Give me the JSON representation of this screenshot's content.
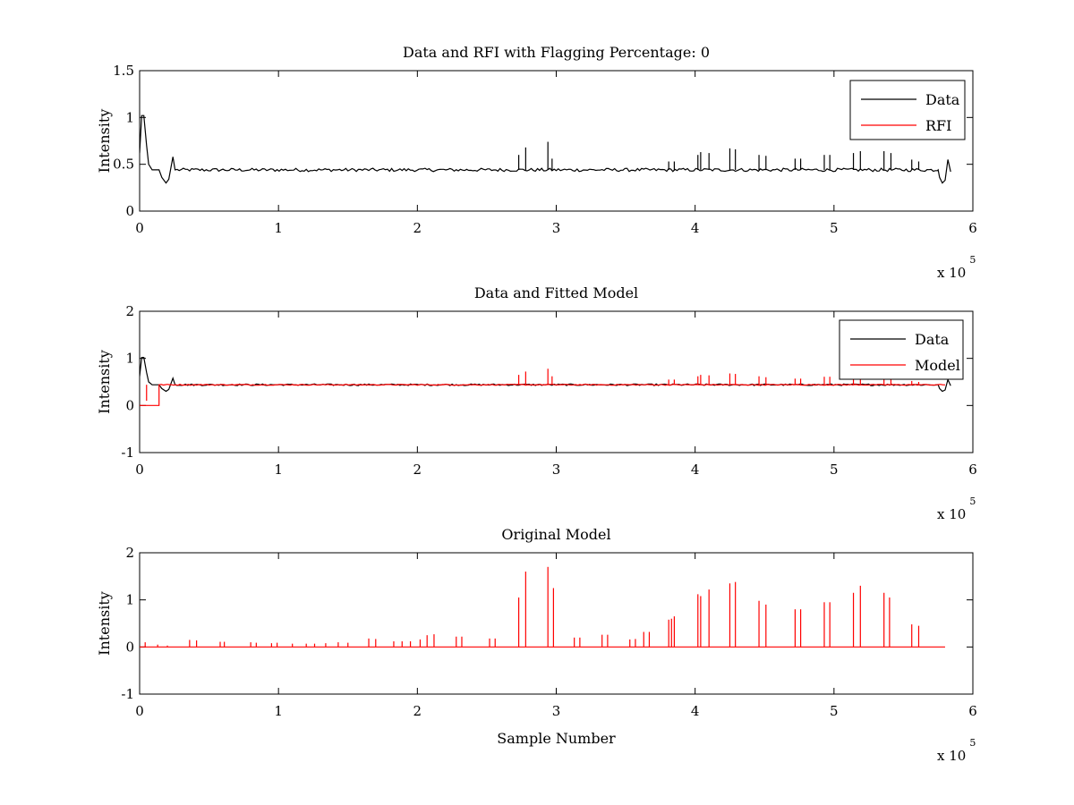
{
  "figure": {
    "background": "#ffffff",
    "x_exponent_base": "x 10",
    "x_exponent_power": "5"
  },
  "chart_data": [
    {
      "type": "line",
      "title": "Data and RFI with Flagging Percentage: 0",
      "xlabel": "",
      "ylabel": "Intensity",
      "xlim": [
        0,
        600000
      ],
      "ylim": [
        0,
        1.5
      ],
      "x_ticks": [
        0,
        100000,
        200000,
        300000,
        400000,
        500000,
        600000
      ],
      "x_tick_labels": [
        "0",
        "1",
        "2",
        "3",
        "4",
        "5",
        "6"
      ],
      "y_ticks": [
        0,
        0.5,
        1,
        1.5
      ],
      "y_tick_labels": [
        "0",
        "0.5",
        "1",
        "1.5"
      ],
      "legend": {
        "placement": "top-right",
        "entries": [
          {
            "name": "Data",
            "color": "#000000"
          },
          {
            "name": "RFI",
            "color": "#ff0000"
          }
        ]
      },
      "series": [
        {
          "name": "Data",
          "color": "#000000",
          "baseline": 0.44,
          "shape_points": [
            [
              0,
              0.62
            ],
            [
              1500,
              1.02
            ],
            [
              3000,
              1.02
            ],
            [
              5000,
              0.7
            ],
            [
              6500,
              0.5
            ],
            [
              9000,
              0.44
            ],
            [
              14000,
              0.44
            ],
            [
              16000,
              0.36
            ],
            [
              19000,
              0.3
            ],
            [
              21000,
              0.34
            ],
            [
              24000,
              0.58
            ],
            [
              25500,
              0.44
            ],
            [
              575000,
              0.44
            ],
            [
              576000,
              0.36
            ],
            [
              578000,
              0.3
            ],
            [
              580000,
              0.33
            ],
            [
              582000,
              0.55
            ],
            [
              584000,
              0.42
            ]
          ],
          "spikes": [
            [
              273000,
              0.6
            ],
            [
              278000,
              0.68
            ],
            [
              294000,
              0.74
            ],
            [
              297000,
              0.56
            ],
            [
              402000,
              0.6
            ],
            [
              404000,
              0.63
            ],
            [
              410000,
              0.62
            ],
            [
              425000,
              0.67
            ],
            [
              429000,
              0.66
            ],
            [
              446000,
              0.6
            ],
            [
              451000,
              0.59
            ],
            [
              472000,
              0.56
            ],
            [
              476000,
              0.56
            ],
            [
              493000,
              0.6
            ],
            [
              497000,
              0.6
            ],
            [
              514000,
              0.62
            ],
            [
              519000,
              0.64
            ],
            [
              536000,
              0.64
            ],
            [
              541000,
              0.62
            ],
            [
              556000,
              0.55
            ],
            [
              561000,
              0.53
            ],
            [
              381000,
              0.53
            ],
            [
              385000,
              0.53
            ]
          ]
        },
        {
          "name": "RFI",
          "color": "#ff0000",
          "values_note": ""
        }
      ]
    },
    {
      "type": "line",
      "title": "Data and Fitted Model",
      "xlabel": "",
      "ylabel": "Intensity",
      "xlim": [
        0,
        600000
      ],
      "ylim": [
        -1,
        2
      ],
      "x_ticks": [
        0,
        100000,
        200000,
        300000,
        400000,
        500000,
        600000
      ],
      "x_tick_labels": [
        "0",
        "1",
        "2",
        "3",
        "4",
        "5",
        "6"
      ],
      "y_ticks": [
        -1,
        0,
        1,
        2
      ],
      "y_tick_labels": [
        "-1",
        "0",
        "1",
        "2"
      ],
      "legend": {
        "placement": "top-right",
        "entries": [
          {
            "name": "Data",
            "color": "#000000"
          },
          {
            "name": "Model",
            "color": "#ff0000"
          }
        ]
      },
      "series": [
        {
          "name": "Data",
          "color": "#000000",
          "shape_points": [
            [
              0,
              0.62
            ],
            [
              1500,
              1.02
            ],
            [
              3000,
              1.02
            ],
            [
              5000,
              0.7
            ],
            [
              6500,
              0.5
            ],
            [
              9000,
              0.44
            ],
            [
              14000,
              0.44
            ],
            [
              16000,
              0.36
            ],
            [
              19000,
              0.3
            ],
            [
              21000,
              0.34
            ],
            [
              24000,
              0.58
            ],
            [
              25500,
              0.44
            ],
            [
              575000,
              0.44
            ],
            [
              576000,
              0.36
            ],
            [
              578000,
              0.3
            ],
            [
              580000,
              0.33
            ],
            [
              582000,
              0.55
            ],
            [
              584000,
              0.42
            ]
          ]
        },
        {
          "name": "Model",
          "color": "#ff0000",
          "shape_points": [
            [
              0,
              0
            ],
            [
              14000,
              0
            ],
            [
              14000,
              0.44
            ],
            [
              580000,
              0.44
            ]
          ],
          "spikes": [
            [
              273000,
              0.65
            ],
            [
              278000,
              0.72
            ],
            [
              294000,
              0.78
            ],
            [
              297000,
              0.62
            ],
            [
              381000,
              0.55
            ],
            [
              385000,
              0.55
            ],
            [
              402000,
              0.62
            ],
            [
              404000,
              0.65
            ],
            [
              410000,
              0.64
            ],
            [
              425000,
              0.68
            ],
            [
              429000,
              0.67
            ],
            [
              446000,
              0.62
            ],
            [
              451000,
              0.6
            ],
            [
              472000,
              0.57
            ],
            [
              476000,
              0.57
            ],
            [
              493000,
              0.61
            ],
            [
              497000,
              0.61
            ],
            [
              514000,
              0.6
            ],
            [
              519000,
              0.62
            ],
            [
              536000,
              0.6
            ],
            [
              541000,
              0.58
            ],
            [
              556000,
              0.52
            ],
            [
              561000,
              0.5
            ],
            [
              5000,
              0.1
            ]
          ]
        }
      ]
    },
    {
      "type": "line",
      "title": "Original Model",
      "xlabel": "Sample Number",
      "ylabel": "Intensity",
      "xlim": [
        0,
        600000
      ],
      "ylim": [
        -1,
        2
      ],
      "x_ticks": [
        0,
        100000,
        200000,
        300000,
        400000,
        500000,
        600000
      ],
      "x_tick_labels": [
        "0",
        "1",
        "2",
        "3",
        "4",
        "5",
        "6"
      ],
      "y_ticks": [
        -1,
        0,
        1,
        2
      ],
      "y_tick_labels": [
        "-1",
        "0",
        "1",
        "2"
      ],
      "series": [
        {
          "name": "Model",
          "color": "#ff0000",
          "baseline": 0,
          "x_end": 580000,
          "spikes": [
            [
              4000,
              0.1
            ],
            [
              13000,
              0.05
            ],
            [
              20000,
              0.03
            ],
            [
              36000,
              0.15
            ],
            [
              41000,
              0.14
            ],
            [
              58000,
              0.11
            ],
            [
              61000,
              0.11
            ],
            [
              80000,
              0.1
            ],
            [
              84000,
              0.09
            ],
            [
              95000,
              0.08
            ],
            [
              99000,
              0.09
            ],
            [
              110000,
              0.07
            ],
            [
              120000,
              0.07
            ],
            [
              126000,
              0.07
            ],
            [
              134000,
              0.08
            ],
            [
              143000,
              0.1
            ],
            [
              150000,
              0.09
            ],
            [
              165000,
              0.18
            ],
            [
              170000,
              0.17
            ],
            [
              183000,
              0.12
            ],
            [
              189000,
              0.12
            ],
            [
              195000,
              0.12
            ],
            [
              202000,
              0.16
            ],
            [
              207000,
              0.25
            ],
            [
              212000,
              0.27
            ],
            [
              228000,
              0.22
            ],
            [
              232000,
              0.22
            ],
            [
              252000,
              0.18
            ],
            [
              256000,
              0.18
            ],
            [
              273000,
              1.05
            ],
            [
              278000,
              1.6
            ],
            [
              294000,
              1.7
            ],
            [
              298000,
              1.25
            ],
            [
              313000,
              0.2
            ],
            [
              317000,
              0.2
            ],
            [
              333000,
              0.26
            ],
            [
              337000,
              0.26
            ],
            [
              353000,
              0.16
            ],
            [
              357000,
              0.17
            ],
            [
              363000,
              0.32
            ],
            [
              367000,
              0.32
            ],
            [
              381000,
              0.58
            ],
            [
              383000,
              0.6
            ],
            [
              385000,
              0.65
            ],
            [
              402000,
              1.12
            ],
            [
              404000,
              1.08
            ],
            [
              410000,
              1.22
            ],
            [
              425000,
              1.35
            ],
            [
              429000,
              1.38
            ],
            [
              446000,
              0.98
            ],
            [
              451000,
              0.9
            ],
            [
              472000,
              0.8
            ],
            [
              476000,
              0.8
            ],
            [
              493000,
              0.95
            ],
            [
              497000,
              0.95
            ],
            [
              514000,
              1.15
            ],
            [
              519000,
              1.3
            ],
            [
              536000,
              1.15
            ],
            [
              540000,
              1.05
            ],
            [
              556000,
              0.48
            ],
            [
              561000,
              0.45
            ]
          ]
        }
      ]
    }
  ]
}
